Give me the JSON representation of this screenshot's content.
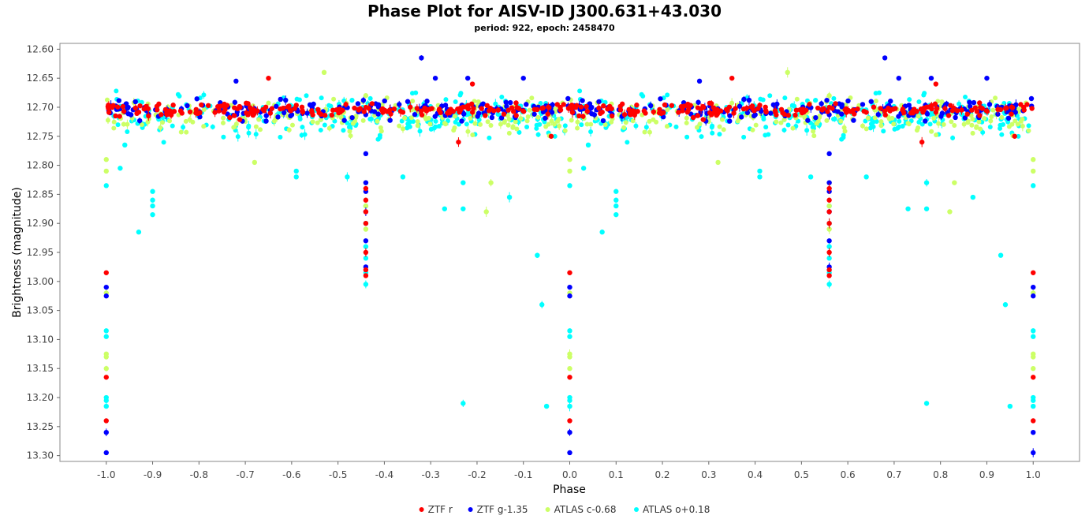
{
  "chart_data": {
    "type": "scatter",
    "title": "Phase Plot for AISV-ID J300.631+43.030",
    "subtitle": "period: 922, epoch: 2458470",
    "xlabel": "Phase",
    "ylabel": "Brightness (magnitude)",
    "xlim": [
      -1.1,
      1.1
    ],
    "ylim": [
      13.31,
      12.59
    ],
    "y_inverted": true,
    "x_ticks": [
      "-1.0",
      "-0.9",
      "-0.8",
      "-0.7",
      "-0.6",
      "-0.5",
      "-0.4",
      "-0.3",
      "-0.2",
      "-0.1",
      "0.0",
      "0.1",
      "0.2",
      "0.3",
      "0.4",
      "0.5",
      "0.6",
      "0.7",
      "0.8",
      "0.9",
      "1.0"
    ],
    "y_ticks": [
      "12.60",
      "12.65",
      "12.70",
      "12.75",
      "12.80",
      "12.85",
      "12.90",
      "12.95",
      "13.00",
      "13.05",
      "13.10",
      "13.15",
      "13.20",
      "13.25",
      "13.30"
    ],
    "grid": false,
    "legend_position": "bottom-center",
    "phase_repeated": true,
    "series": [
      {
        "name": "ZTF r",
        "color": "#ff0000",
        "baseline": 12.705,
        "spread": 0.012,
        "points": [
          {
            "x": -0.44,
            "y": 12.84
          },
          {
            "x": -0.44,
            "y": 12.86
          },
          {
            "x": -0.44,
            "y": 12.88
          },
          {
            "x": -0.44,
            "y": 12.9
          },
          {
            "x": -0.44,
            "y": 12.95
          },
          {
            "x": -0.44,
            "y": 12.98
          },
          {
            "x": -0.44,
            "y": 12.99
          },
          {
            "x": 0.0,
            "y": 12.985
          },
          {
            "x": 0.0,
            "y": 13.165
          },
          {
            "x": 0.0,
            "y": 13.24
          },
          {
            "x": -0.65,
            "y": 12.65
          },
          {
            "x": -0.24,
            "y": 12.76
          },
          {
            "x": -0.04,
            "y": 12.75
          },
          {
            "x": -0.21,
            "y": 12.66
          }
        ]
      },
      {
        "name": "ZTF g-1.35",
        "color": "#0000ff",
        "baseline": 12.705,
        "spread": 0.018,
        "points": [
          {
            "x": -0.32,
            "y": 12.615
          },
          {
            "x": -0.29,
            "y": 12.65
          },
          {
            "x": -0.22,
            "y": 12.65
          },
          {
            "x": -0.1,
            "y": 12.65
          },
          {
            "x": -0.72,
            "y": 12.655
          },
          {
            "x": -0.44,
            "y": 12.78
          },
          {
            "x": -0.44,
            "y": 12.83
          },
          {
            "x": -0.44,
            "y": 12.845
          },
          {
            "x": -0.44,
            "y": 12.88
          },
          {
            "x": -0.44,
            "y": 12.93
          },
          {
            "x": -0.44,
            "y": 12.975
          },
          {
            "x": 0.0,
            "y": 13.01
          },
          {
            "x": 0.0,
            "y": 13.025
          },
          {
            "x": 0.0,
            "y": 13.26
          },
          {
            "x": 0.0,
            "y": 13.295
          }
        ]
      },
      {
        "name": "ATLAS c-0.68",
        "color": "#ccff66",
        "baseline": 12.715,
        "spread": 0.03,
        "points": [
          {
            "x": -0.44,
            "y": 12.68
          },
          {
            "x": -0.44,
            "y": 12.83
          },
          {
            "x": -0.44,
            "y": 12.87
          },
          {
            "x": -0.44,
            "y": 12.91
          },
          {
            "x": -0.18,
            "y": 12.88
          },
          {
            "x": -0.17,
            "y": 12.83
          },
          {
            "x": -0.53,
            "y": 12.64
          },
          {
            "x": -0.68,
            "y": 12.795
          },
          {
            "x": 0.0,
            "y": 12.79
          },
          {
            "x": 0.0,
            "y": 12.81
          },
          {
            "x": 0.0,
            "y": 13.02
          },
          {
            "x": 0.0,
            "y": 13.125
          },
          {
            "x": 0.0,
            "y": 13.13
          },
          {
            "x": 0.0,
            "y": 13.15
          }
        ]
      },
      {
        "name": "ATLAS o+0.18",
        "color": "#00ffff",
        "baseline": 12.715,
        "spread": 0.038,
        "points": [
          {
            "x": -0.97,
            "y": 12.805
          },
          {
            "x": -0.96,
            "y": 12.765
          },
          {
            "x": -0.93,
            "y": 12.915
          },
          {
            "x": -0.9,
            "y": 12.845
          },
          {
            "x": -0.9,
            "y": 12.86
          },
          {
            "x": -0.9,
            "y": 12.87
          },
          {
            "x": -0.9,
            "y": 12.885
          },
          {
            "x": -0.44,
            "y": 12.87
          },
          {
            "x": -0.44,
            "y": 12.9
          },
          {
            "x": -0.44,
            "y": 12.94
          },
          {
            "x": -0.44,
            "y": 12.96
          },
          {
            "x": -0.44,
            "y": 12.985
          },
          {
            "x": -0.44,
            "y": 13.005
          },
          {
            "x": -0.27,
            "y": 12.875
          },
          {
            "x": -0.23,
            "y": 12.875
          },
          {
            "x": -0.23,
            "y": 12.83
          },
          {
            "x": -0.23,
            "y": 13.21
          },
          {
            "x": -0.13,
            "y": 12.855
          },
          {
            "x": -0.07,
            "y": 12.955
          },
          {
            "x": -0.06,
            "y": 13.04
          },
          {
            "x": -0.05,
            "y": 13.215
          },
          {
            "x": -0.36,
            "y": 12.82
          },
          {
            "x": -0.48,
            "y": 12.82
          },
          {
            "x": -0.59,
            "y": 12.81
          },
          {
            "x": -0.59,
            "y": 12.82
          },
          {
            "x": 0.0,
            "y": 12.835
          },
          {
            "x": 0.0,
            "y": 13.085
          },
          {
            "x": 0.0,
            "y": 13.095
          },
          {
            "x": 0.0,
            "y": 13.2
          },
          {
            "x": 0.0,
            "y": 13.205
          },
          {
            "x": 0.0,
            "y": 13.215
          }
        ]
      }
    ]
  }
}
